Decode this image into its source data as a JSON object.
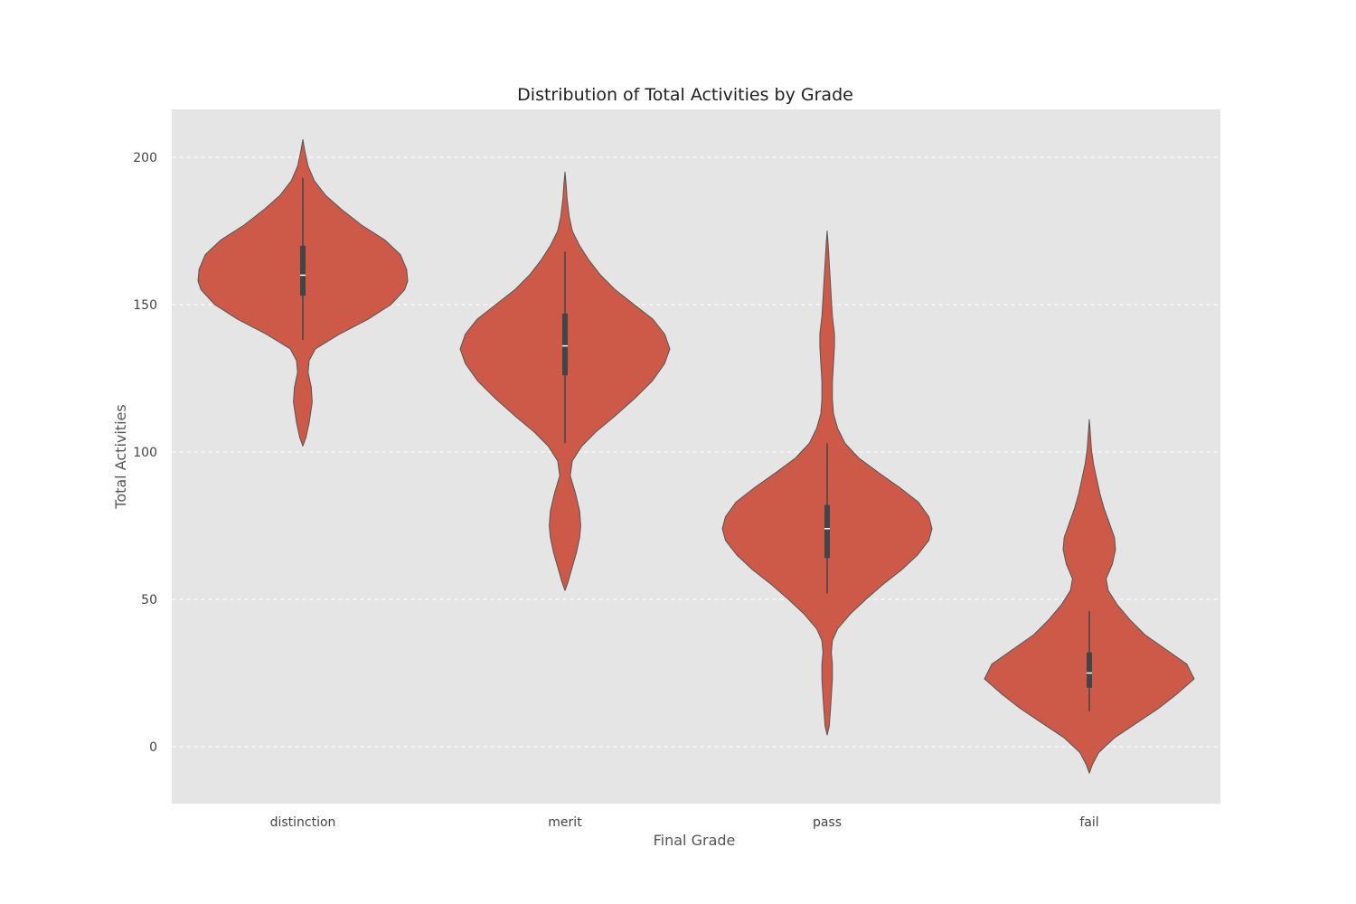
{
  "chart_data": {
    "type": "violin",
    "title": "Distribution of Total Activities by Grade",
    "xlabel": "Final Grade",
    "ylabel": "Total Activities",
    "categories": [
      "distinction",
      "merit",
      "pass",
      "fail"
    ],
    "ylim": [
      -19.5,
      216
    ],
    "yticks": [
      0,
      50,
      100,
      150,
      200
    ],
    "grid": "y, dashed",
    "colors": {
      "violin_fill": "#CD5A48",
      "violin_edge": "#555555",
      "plot_background": "#E5E5E5",
      "grid": "#FFFFFF",
      "box": "#444444",
      "median": "#FFFFFF"
    },
    "series": [
      {
        "category": "distinction",
        "median": 160,
        "q1": 153,
        "q3": 170,
        "whisker_low": 138,
        "whisker_high": 193,
        "min": 102,
        "max": 206,
        "density": [
          [
            102,
            0.0
          ],
          [
            105,
            0.03
          ],
          [
            110,
            0.06
          ],
          [
            117,
            0.09
          ],
          [
            122,
            0.08
          ],
          [
            127,
            0.05
          ],
          [
            131,
            0.06
          ],
          [
            135,
            0.12
          ],
          [
            140,
            0.35
          ],
          [
            145,
            0.62
          ],
          [
            150,
            0.84
          ],
          [
            155,
            0.97
          ],
          [
            158,
            1.0
          ],
          [
            162,
            0.99
          ],
          [
            167,
            0.93
          ],
          [
            172,
            0.78
          ],
          [
            177,
            0.56
          ],
          [
            182,
            0.38
          ],
          [
            187,
            0.22
          ],
          [
            192,
            0.11
          ],
          [
            197,
            0.05
          ],
          [
            202,
            0.02
          ],
          [
            206,
            0.0
          ]
        ]
      },
      {
        "category": "merit",
        "median": 136,
        "q1": 126,
        "q3": 147,
        "whisker_low": 103,
        "whisker_high": 168,
        "min": 53,
        "max": 195,
        "density": [
          [
            53,
            0.0
          ],
          [
            56,
            0.03
          ],
          [
            61,
            0.07
          ],
          [
            66,
            0.11
          ],
          [
            71,
            0.14
          ],
          [
            75,
            0.15
          ],
          [
            80,
            0.14
          ],
          [
            86,
            0.1
          ],
          [
            92,
            0.05
          ],
          [
            97,
            0.07
          ],
          [
            102,
            0.16
          ],
          [
            107,
            0.3
          ],
          [
            112,
            0.47
          ],
          [
            118,
            0.66
          ],
          [
            124,
            0.83
          ],
          [
            130,
            0.95
          ],
          [
            135,
            1.0
          ],
          [
            140,
            0.95
          ],
          [
            145,
            0.84
          ],
          [
            150,
            0.66
          ],
          [
            155,
            0.48
          ],
          [
            160,
            0.34
          ],
          [
            165,
            0.23
          ],
          [
            170,
            0.14
          ],
          [
            175,
            0.07
          ],
          [
            180,
            0.04
          ],
          [
            186,
            0.02
          ],
          [
            191,
            0.01
          ],
          [
            195,
            0.0
          ]
        ]
      },
      {
        "category": "pass",
        "median": 74,
        "q1": 64,
        "q3": 82,
        "whisker_low": 52,
        "whisker_high": 103,
        "min": 4,
        "max": 175,
        "density": [
          [
            4,
            0.0
          ],
          [
            7,
            0.02
          ],
          [
            12,
            0.03
          ],
          [
            17,
            0.04
          ],
          [
            23,
            0.05
          ],
          [
            28,
            0.05
          ],
          [
            32,
            0.04
          ],
          [
            36,
            0.05
          ],
          [
            40,
            0.1
          ],
          [
            45,
            0.22
          ],
          [
            50,
            0.37
          ],
          [
            55,
            0.53
          ],
          [
            60,
            0.71
          ],
          [
            65,
            0.86
          ],
          [
            70,
            0.97
          ],
          [
            74,
            1.0
          ],
          [
            78,
            0.97
          ],
          [
            83,
            0.87
          ],
          [
            88,
            0.69
          ],
          [
            93,
            0.49
          ],
          [
            98,
            0.3
          ],
          [
            103,
            0.17
          ],
          [
            108,
            0.1
          ],
          [
            113,
            0.06
          ],
          [
            118,
            0.05
          ],
          [
            124,
            0.05
          ],
          [
            130,
            0.06
          ],
          [
            136,
            0.07
          ],
          [
            140,
            0.07
          ],
          [
            146,
            0.05
          ],
          [
            152,
            0.04
          ],
          [
            158,
            0.03
          ],
          [
            164,
            0.02
          ],
          [
            170,
            0.01
          ],
          [
            175,
            0.0
          ]
        ]
      },
      {
        "category": "fail",
        "median": 25,
        "q1": 20,
        "q3": 32,
        "whisker_low": 12,
        "whisker_high": 46,
        "min": -9,
        "max": 111,
        "density": [
          [
            -9,
            0.0
          ],
          [
            -6,
            0.03
          ],
          [
            -2,
            0.09
          ],
          [
            3,
            0.24
          ],
          [
            8,
            0.45
          ],
          [
            13,
            0.66
          ],
          [
            18,
            0.84
          ],
          [
            23,
            1.0
          ],
          [
            28,
            0.93
          ],
          [
            33,
            0.73
          ],
          [
            38,
            0.53
          ],
          [
            43,
            0.39
          ],
          [
            48,
            0.27
          ],
          [
            53,
            0.18
          ],
          [
            57,
            0.16
          ],
          [
            62,
            0.22
          ],
          [
            67,
            0.25
          ],
          [
            71,
            0.24
          ],
          [
            76,
            0.19
          ],
          [
            81,
            0.14
          ],
          [
            86,
            0.1
          ],
          [
            91,
            0.07
          ],
          [
            96,
            0.04
          ],
          [
            101,
            0.02
          ],
          [
            106,
            0.01
          ],
          [
            111,
            0.0
          ]
        ]
      }
    ]
  }
}
